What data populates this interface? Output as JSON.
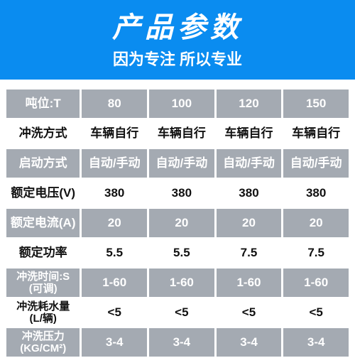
{
  "header": {
    "title": "产品参数",
    "subtitle": "因为专注 所以专业"
  },
  "table": {
    "columns": [
      "80",
      "100",
      "120",
      "150"
    ],
    "rows": [
      {
        "label": "吨位:T",
        "header_row": true,
        "values": [
          "80",
          "100",
          "120",
          "150"
        ]
      },
      {
        "label": "冲洗方式",
        "header_row": false,
        "values": [
          "车辆自行",
          "车辆自行",
          "车辆自行",
          "车辆自行"
        ]
      },
      {
        "label": "启动方式",
        "header_row": true,
        "values": [
          "自动/手动",
          "自动/手动",
          "自动/手动",
          "自动/手动"
        ]
      },
      {
        "label": "额定电压(V)",
        "header_row": false,
        "values": [
          "380",
          "380",
          "380",
          "380"
        ]
      },
      {
        "label": "额定电流(A)",
        "header_row": true,
        "values": [
          "20",
          "20",
          "20",
          "20"
        ]
      },
      {
        "label": "额定功率",
        "header_row": false,
        "values": [
          "5.5",
          "5.5",
          "7.5",
          "7.5"
        ]
      },
      {
        "label": "冲洗时间:S\n(可调)",
        "header_row": true,
        "values": [
          "1-60",
          "1-60",
          "1-60",
          "1-60"
        ]
      },
      {
        "label": "冲洗耗水量\n(L/辆)",
        "header_row": false,
        "values": [
          "<5",
          "<5",
          "<5",
          "<5"
        ]
      },
      {
        "label": "冲洗压力\n(KG/CM²)",
        "header_row": true,
        "values": [
          "3-4",
          "3-4",
          "3-4",
          "3-4"
        ]
      }
    ],
    "colors": {
      "header_bg": "#a4aab2",
      "header_fg": "#ffffff",
      "body_bg": "#ffffff",
      "body_fg": "#111111",
      "page_header_bg": "#0a8cf0"
    }
  }
}
